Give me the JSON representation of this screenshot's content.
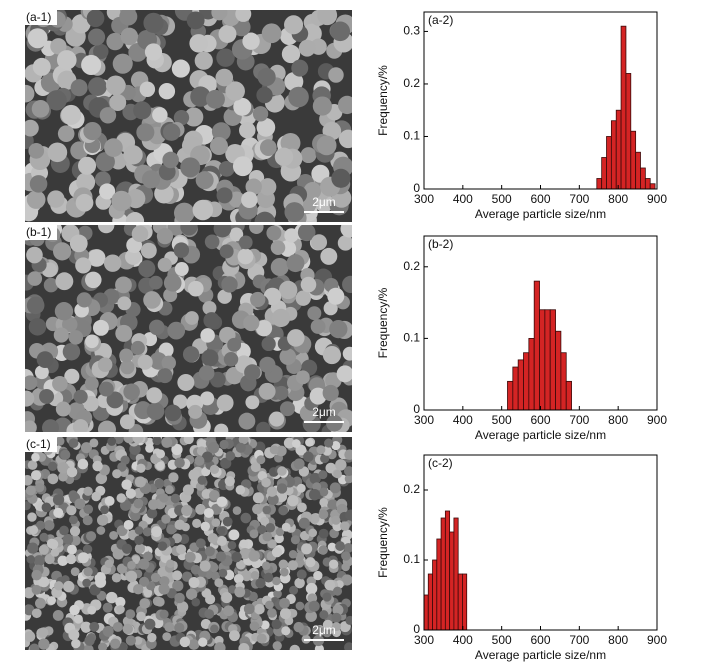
{
  "images": [
    {
      "label": "(a-1)",
      "scale": "2μm"
    },
    {
      "label": "(b-1)",
      "scale": "2μm"
    },
    {
      "label": "(c-1)",
      "scale": "2μm"
    }
  ],
  "chart_data": [
    {
      "type": "histogram",
      "panel_label": "(a-2)",
      "x_label": "Average particle size/nm",
      "y_label": "Frequency/%",
      "bins": [
        745,
        757.5,
        770,
        782.5,
        795,
        807.5,
        820,
        832.5,
        845,
        857.5,
        870,
        882.5,
        895
      ],
      "values": [
        0.02,
        0.06,
        0.1,
        0.13,
        0.15,
        0.31,
        0.22,
        0.11,
        0.07,
        0.04,
        0.02,
        0.01
      ],
      "color": "#d42424",
      "xlim": [
        300,
        900
      ],
      "xticks": [
        300,
        400,
        500,
        600,
        700,
        800,
        900
      ],
      "ylim": [
        0,
        0.337
      ],
      "yticks": [
        0,
        0.1,
        0.2,
        0.3
      ]
    },
    {
      "type": "histogram",
      "panel_label": "(b-2)",
      "x_label": "Average particle size/nm",
      "y_label": "Frequency/%",
      "bins": [
        515,
        528.75,
        542.5,
        556.25,
        570,
        583.75,
        597.5,
        611.25,
        625,
        638.75,
        652.5,
        666.25,
        680
      ],
      "values": [
        0.04,
        0.06,
        0.07,
        0.08,
        0.1,
        0.18,
        0.14,
        0.14,
        0.14,
        0.11,
        0.08,
        0.04
      ],
      "color": "#d42424",
      "xlim": [
        300,
        900
      ],
      "xticks": [
        300,
        400,
        500,
        600,
        700,
        800,
        900
      ],
      "ylim": [
        0,
        0.243
      ],
      "yticks": [
        0,
        0.1,
        0.2
      ]
    },
    {
      "type": "histogram",
      "panel_label": "(c-2)",
      "x_label": "Average particle size/nm",
      "y_label": "Frequency/%",
      "bins": [
        300,
        311,
        322,
        333,
        344,
        355,
        366,
        377,
        388,
        399,
        410
      ],
      "values": [
        0.05,
        0.08,
        0.1,
        0.13,
        0.16,
        0.17,
        0.14,
        0.16,
        0.08,
        0.08
      ],
      "color": "#d42424",
      "xlim": [
        300,
        900
      ],
      "xticks": [
        300,
        400,
        500,
        600,
        700,
        800,
        900
      ],
      "ylim": [
        0,
        0.25
      ],
      "yticks": [
        0,
        0.1,
        0.2
      ]
    }
  ]
}
